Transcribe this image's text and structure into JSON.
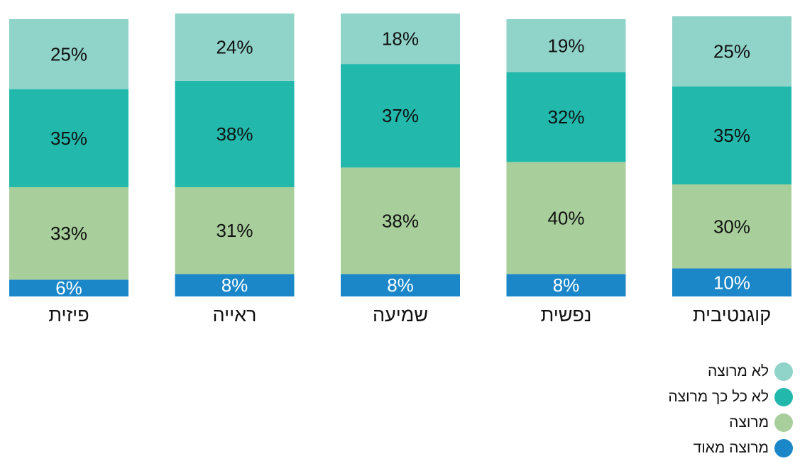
{
  "chart_data": {
    "type": "bar",
    "stacked": true,
    "orientation": "vertical",
    "direction": "rtl",
    "categories": [
      "קוגנטיבית",
      "נפשית",
      "שמיעה",
      "ראייה",
      "פיזית"
    ],
    "series": [
      {
        "name": "מרוצה מאוד",
        "color": "#1b87c9",
        "values": [
          10,
          8,
          8,
          8,
          6
        ]
      },
      {
        "name": "מרוצה",
        "color": "#a8cf9b",
        "values": [
          30,
          40,
          38,
          31,
          33
        ]
      },
      {
        "name": "לא כל כך מרוצה",
        "color": "#22b9ac",
        "values": [
          35,
          32,
          37,
          38,
          35
        ]
      },
      {
        "name": "לא מרוצה",
        "color": "#8fd3c9",
        "values": [
          25,
          19,
          18,
          24,
          25
        ]
      }
    ],
    "value_labels": [
      [
        "10%",
        "8%",
        "8%",
        "8%",
        "6%"
      ],
      [
        "30%",
        "40%",
        "38%",
        "31%",
        "33%"
      ],
      [
        "35%",
        "32%",
        "37%",
        "38%",
        "35%"
      ],
      [
        "25%",
        "19%",
        "18%",
        "24%",
        "25%"
      ]
    ],
    "legend_order": [
      "לא מרוצה",
      "לא כל כך מרוצה",
      "מרוצה",
      "מרוצה מאוד"
    ],
    "legend_position": "bottom-right",
    "grid": false,
    "axes_visible": false
  }
}
